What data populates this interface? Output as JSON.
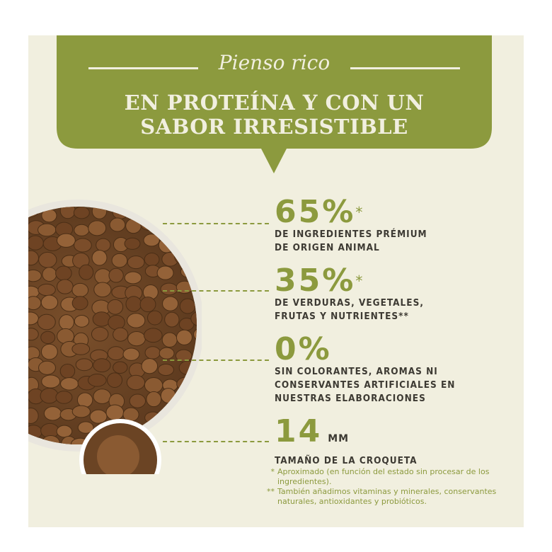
{
  "banner": {
    "script_title": "Pienso rico",
    "headline_line1": "EN PROTEÍNA Y CON UN",
    "headline_line2": "SABOR IRRESISTIBLE"
  },
  "stats": [
    {
      "value": "65%",
      "mark": "*",
      "unit": "",
      "lines": [
        "DE INGREDIENTES PRÉMIUM",
        "DE ORIGEN ANIMAL"
      ]
    },
    {
      "value": "35%",
      "mark": "*",
      "unit": "",
      "lines": [
        "DE VERDURAS, VEGETALES,",
        "FRUTAS Y NUTRIENTES**"
      ]
    },
    {
      "value": "0%",
      "mark": "",
      "unit": "",
      "lines": [
        "SIN COLORANTES, AROMAS NI",
        "CONSERVANTES ARTIFICIALES EN",
        "NUESTRAS ELABORACIONES"
      ]
    },
    {
      "value": "14",
      "mark": "",
      "unit": "MM",
      "lines": [
        "TAMAÑO DE LA CROQUETA"
      ]
    }
  ],
  "notes": [
    {
      "marker": "*",
      "text": "Aproximado (en función del estado sin procesar de los ingredientes)."
    },
    {
      "marker": "**",
      "text": "También añadimos vitaminas y minerales, conservantes naturales, antioxidantes y probióticos."
    }
  ],
  "colors": {
    "accent": "#8c9a3e",
    "background": "#f1efdf",
    "text": "#3d3a33"
  }
}
